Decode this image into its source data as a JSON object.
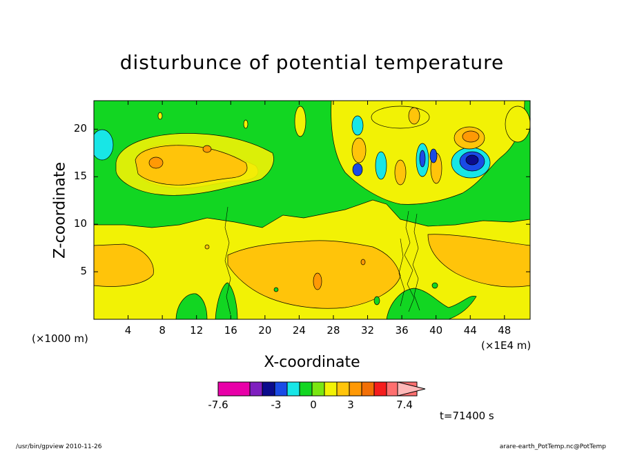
{
  "chart_data": {
    "type": "heatmap",
    "title": "disturbunce of potential temperature",
    "xlabel": "X-coordinate",
    "ylabel": "Z-coordinate",
    "x_unit_left": "(×1000 m)",
    "x_unit_right": "(×1E4 m)",
    "xlim": [
      0,
      51
    ],
    "ylim": [
      0,
      23
    ],
    "x_ticks": [
      "4",
      "8",
      "12",
      "16",
      "20",
      "24",
      "28",
      "32",
      "36",
      "40",
      "44",
      "48"
    ],
    "y_ticks": [
      "5",
      "10",
      "15",
      "20"
    ],
    "colorbar": {
      "labels": [
        "-7.6",
        "-3",
        "0",
        "3",
        "7.4"
      ],
      "colors": [
        "#e800a8",
        "#7f1fbf",
        "#0b0b8c",
        "#1a4be6",
        "#18e6e6",
        "#12d622",
        "#7ae612",
        "#f2f205",
        "#ffc40a",
        "#ff9905",
        "#f26f06",
        "#f51d1d",
        "#ff6f6f",
        "#ffb8b8"
      ]
    },
    "time_label": "t=71400 s"
  },
  "footer": {
    "left": "/usr/bin/gpview   2010-11-26",
    "right": "arare-earth_PotTemp.nc@PotTemp"
  }
}
